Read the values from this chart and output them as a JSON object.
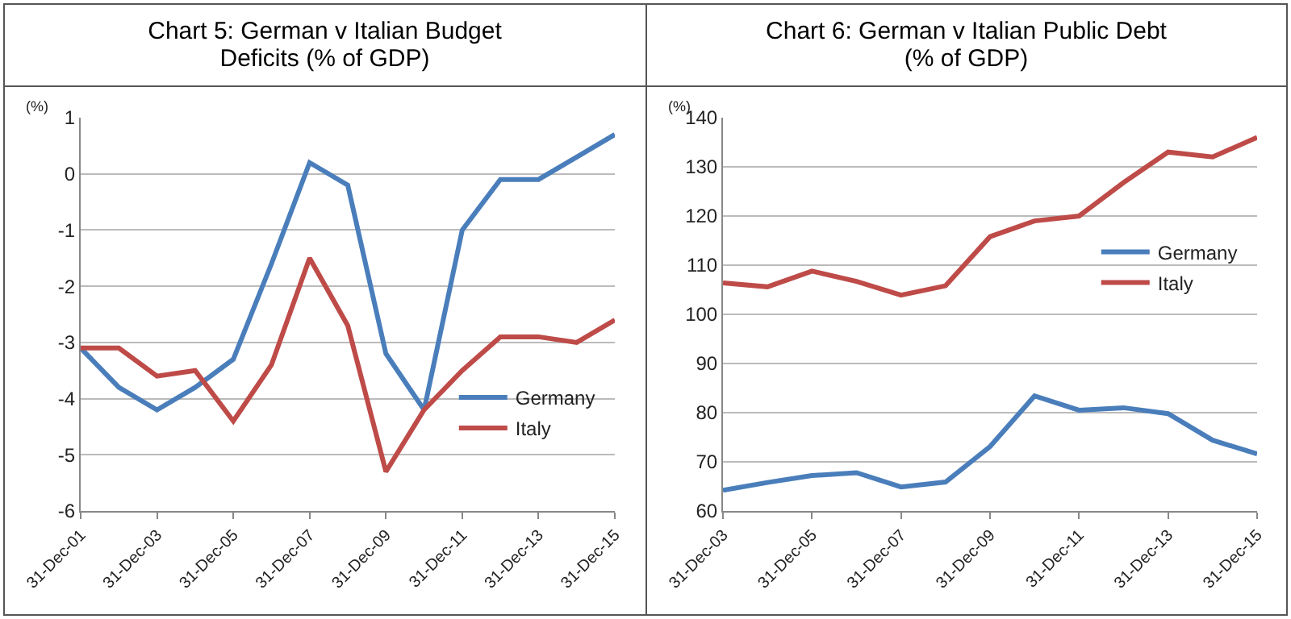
{
  "chart_data": [
    {
      "type": "line",
      "title": "Chart 5: German v Italian Budget Deficits (% of GDP)",
      "ylabel": "(%)",
      "categories": [
        "31-Dec-01",
        null,
        "31-Dec-03",
        null,
        "31-Dec-05",
        null,
        "31-Dec-07",
        null,
        "31-Dec-09",
        null,
        "31-Dec-11",
        null,
        "31-Dec-13",
        null,
        "31-Dec-15"
      ],
      "series": [
        {
          "name": "Germany",
          "color": "#4a7ebb",
          "values": [
            -3.1,
            -3.8,
            -4.2,
            -3.8,
            -3.3,
            -1.6,
            0.2,
            -0.2,
            -3.2,
            -4.2,
            -1.0,
            -0.1,
            -0.1,
            0.3,
            0.7
          ]
        },
        {
          "name": "Italy",
          "color": "#be4b48",
          "values": [
            -3.1,
            -3.1,
            -3.6,
            -3.5,
            -4.4,
            -3.4,
            -1.5,
            -2.7,
            -5.3,
            -4.2,
            -3.5,
            -2.9,
            -2.9,
            -3.0,
            -2.6
          ]
        }
      ],
      "ylim": [
        -6,
        1
      ],
      "yticks": [
        -6,
        -5,
        -4,
        -3,
        -2,
        -1,
        0,
        1
      ],
      "grid": "y",
      "legend": "bottom right",
      "marker": "none",
      "line_style": "solid"
    },
    {
      "type": "line",
      "title": "Chart 6: German v Italian Public Debt (% of GDP)",
      "ylabel": "(%)",
      "categories": [
        "31-Dec-03",
        null,
        "31-Dec-05",
        null,
        "31-Dec-07",
        null,
        "31-Dec-09",
        null,
        "31-Dec-11",
        null,
        "31-Dec-13",
        null,
        "31-Dec-15"
      ],
      "series": [
        {
          "name": "Germany",
          "color": "#4a7ebb",
          "values": [
            64.2,
            65.8,
            67.2,
            67.8,
            64.9,
            65.9,
            73.1,
            83.4,
            80.5,
            81.0,
            79.8,
            74.4,
            71.6
          ]
        },
        {
          "name": "Italy",
          "color": "#be4b48",
          "values": [
            106.4,
            105.6,
            108.8,
            106.7,
            103.9,
            105.8,
            115.8,
            119.0,
            120.0,
            126.8,
            133.0,
            132.0,
            136.0
          ]
        }
      ],
      "ylim": [
        60,
        140
      ],
      "yticks": [
        60,
        70,
        80,
        90,
        100,
        110,
        120,
        130,
        140
      ],
      "grid": "y",
      "legend": "right",
      "marker": "none",
      "line_style": "solid"
    }
  ]
}
